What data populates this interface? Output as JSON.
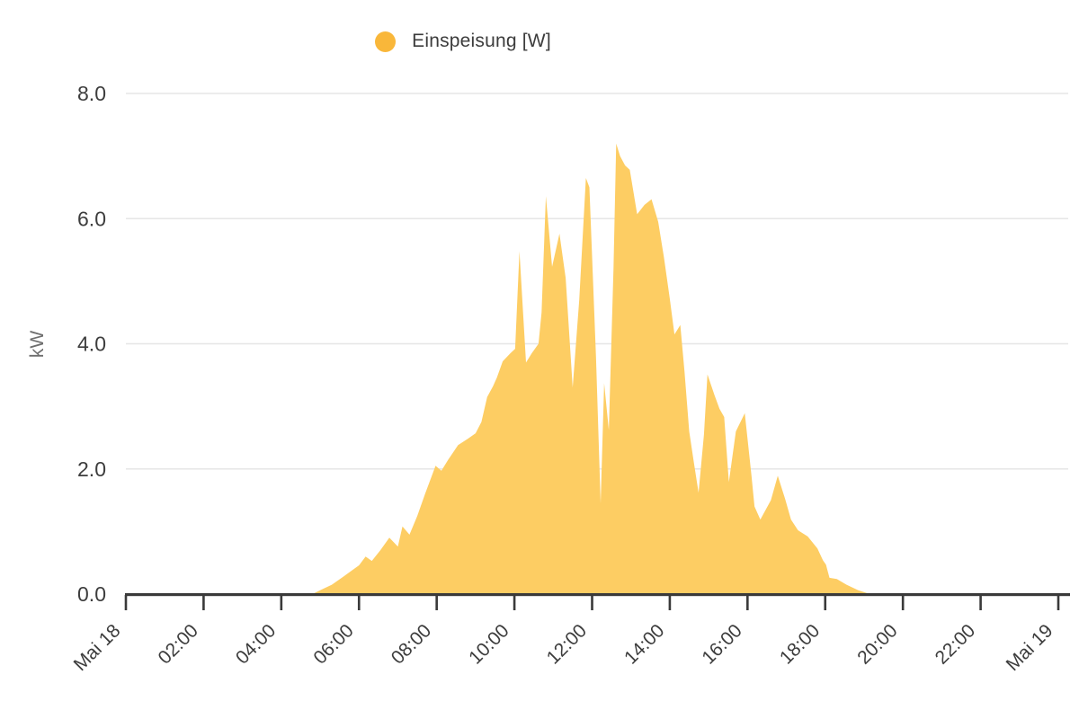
{
  "legend": {
    "label": "Einspeisung [W]",
    "dot_color": "#F9B73A"
  },
  "colors": {
    "area_fill": "#FDCD63",
    "axis_line": "#3A3A3A",
    "gridline": "#E6E6E6",
    "y_tick_label": "#3D3D3D",
    "x_tick_label": "#3C3C3C",
    "y_axis_title": "#6E6E6E",
    "background": "#FFFFFF"
  },
  "chart_data": {
    "type": "area",
    "title": "",
    "xlabel": "",
    "ylabel": "kW",
    "series_name": "Einspeisung [W]",
    "x_unit": "hours since Mai 18 00:00",
    "xlim": [
      0,
      24
    ],
    "ylim": [
      0,
      8
    ],
    "grid": "horizontal only",
    "legend_position": "top-center",
    "y_ticks": [
      {
        "label": "8.0",
        "value": 8
      },
      {
        "label": "6.0",
        "value": 6
      },
      {
        "label": "4.0",
        "value": 4
      },
      {
        "label": "2.0",
        "value": 2
      },
      {
        "label": "0.0",
        "value": 0
      }
    ],
    "y_gridlines": [
      2,
      4,
      6,
      8
    ],
    "x_ticks": [
      {
        "label": "Mai 18",
        "value": 0
      },
      {
        "label": "02:00",
        "value": 2
      },
      {
        "label": "04:00",
        "value": 4
      },
      {
        "label": "06:00",
        "value": 6
      },
      {
        "label": "08:00",
        "value": 8
      },
      {
        "label": "10:00",
        "value": 10
      },
      {
        "label": "12:00",
        "value": 12
      },
      {
        "label": "14:00",
        "value": 14
      },
      {
        "label": "16:00",
        "value": 16
      },
      {
        "label": "18:00",
        "value": 18
      },
      {
        "label": "20:00",
        "value": 20
      },
      {
        "label": "22:00",
        "value": 22
      },
      {
        "label": "Mai 19",
        "value": 24
      }
    ],
    "points_t_kw": [
      [
        0,
        0
      ],
      [
        4.8,
        0
      ],
      [
        5.0,
        0.06
      ],
      [
        5.3,
        0.15
      ],
      [
        5.6,
        0.28
      ],
      [
        5.8,
        0.37
      ],
      [
        6.0,
        0.46
      ],
      [
        6.17,
        0.6
      ],
      [
        6.33,
        0.53
      ],
      [
        6.55,
        0.7
      ],
      [
        6.78,
        0.9
      ],
      [
        7.0,
        0.76
      ],
      [
        7.12,
        1.08
      ],
      [
        7.3,
        0.95
      ],
      [
        7.5,
        1.25
      ],
      [
        7.7,
        1.6
      ],
      [
        7.97,
        2.05
      ],
      [
        8.12,
        1.97
      ],
      [
        8.3,
        2.15
      ],
      [
        8.55,
        2.38
      ],
      [
        8.8,
        2.48
      ],
      [
        9.0,
        2.57
      ],
      [
        9.15,
        2.75
      ],
      [
        9.3,
        3.15
      ],
      [
        9.45,
        3.32
      ],
      [
        9.55,
        3.46
      ],
      [
        9.7,
        3.72
      ],
      [
        9.9,
        3.85
      ],
      [
        10.02,
        3.92
      ],
      [
        10.13,
        5.48
      ],
      [
        10.3,
        3.7
      ],
      [
        10.45,
        3.85
      ],
      [
        10.62,
        4.0
      ],
      [
        10.7,
        4.5
      ],
      [
        10.81,
        6.36
      ],
      [
        10.97,
        5.23
      ],
      [
        11.16,
        5.76
      ],
      [
        11.32,
        5.05
      ],
      [
        11.5,
        3.3
      ],
      [
        11.67,
        4.7
      ],
      [
        11.84,
        6.65
      ],
      [
        11.93,
        6.5
      ],
      [
        12.1,
        3.8
      ],
      [
        12.22,
        1.45
      ],
      [
        12.31,
        3.37
      ],
      [
        12.43,
        2.62
      ],
      [
        12.55,
        5.2
      ],
      [
        12.62,
        7.2
      ],
      [
        12.72,
        7.0
      ],
      [
        12.85,
        6.85
      ],
      [
        12.97,
        6.78
      ],
      [
        13.16,
        6.07
      ],
      [
        13.35,
        6.22
      ],
      [
        13.53,
        6.31
      ],
      [
        13.7,
        5.95
      ],
      [
        13.85,
        5.38
      ],
      [
        14.0,
        4.72
      ],
      [
        14.12,
        4.15
      ],
      [
        14.27,
        4.3
      ],
      [
        14.38,
        3.55
      ],
      [
        14.5,
        2.6
      ],
      [
        14.62,
        2.1
      ],
      [
        14.74,
        1.62
      ],
      [
        14.88,
        2.55
      ],
      [
        14.97,
        3.51
      ],
      [
        15.15,
        3.18
      ],
      [
        15.28,
        2.96
      ],
      [
        15.4,
        2.83
      ],
      [
        15.52,
        1.79
      ],
      [
        15.7,
        2.6
      ],
      [
        15.93,
        2.89
      ],
      [
        16.1,
        1.9
      ],
      [
        16.18,
        1.4
      ],
      [
        16.33,
        1.19
      ],
      [
        16.6,
        1.5
      ],
      [
        16.78,
        1.89
      ],
      [
        16.97,
        1.52
      ],
      [
        17.12,
        1.19
      ],
      [
        17.3,
        1.02
      ],
      [
        17.55,
        0.92
      ],
      [
        17.8,
        0.73
      ],
      [
        17.94,
        0.54
      ],
      [
        18.02,
        0.47
      ],
      [
        18.11,
        0.26
      ],
      [
        18.3,
        0.24
      ],
      [
        18.55,
        0.15
      ],
      [
        18.85,
        0.06
      ],
      [
        19.1,
        0.01
      ],
      [
        19.3,
        0
      ],
      [
        24,
        0
      ]
    ]
  }
}
